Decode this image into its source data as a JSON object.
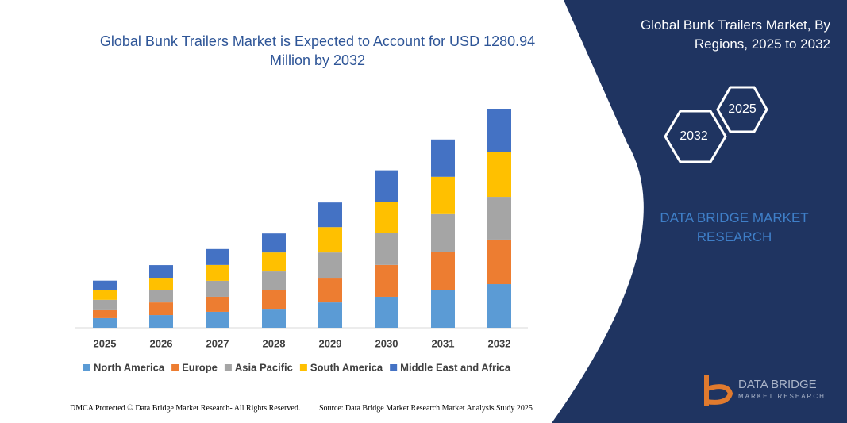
{
  "chart_data": {
    "type": "stacked-bar",
    "title": "Global Bunk Trailers Market is Expected to Account for USD 1280.94 Million by 2032",
    "categories": [
      "2025",
      "2026",
      "2027",
      "2028",
      "2029",
      "2030",
      "2031",
      "2032"
    ],
    "series": [
      {
        "name": "North America",
        "color": "#5b9bd5",
        "values": [
          56,
          74,
          93,
          111,
          148,
          181,
          218,
          255
        ]
      },
      {
        "name": "Europe",
        "color": "#ed7d31",
        "values": [
          51,
          74,
          88,
          107,
          144,
          186,
          223,
          260
        ]
      },
      {
        "name": "Asia Pacific",
        "color": "#a5a5a5",
        "values": [
          56,
          70,
          93,
          111,
          148,
          186,
          223,
          250
        ]
      },
      {
        "name": "South America",
        "color": "#ffc000",
        "values": [
          56,
          74,
          93,
          111,
          148,
          181,
          218,
          260
        ]
      },
      {
        "name": "Middle East and Africa",
        "color": "#4472c4",
        "values": [
          56,
          74,
          93,
          111,
          144,
          186,
          218,
          255
        ]
      }
    ]
  },
  "panel": {
    "title": "Global Bunk Trailers Market, By Regions, 2025 to 2032",
    "hexagons": [
      "2025",
      "2032"
    ],
    "brand": "DATA BRIDGE MARKET RESEARCH"
  },
  "logo": {
    "name": "DATA BRIDGE",
    "tagline": "MARKET RESEARCH"
  },
  "footer": {
    "left": "DMCA Protected © Data Bridge Market Research- All Rights Reserved.",
    "right": "Source: Data Bridge Market Research Market Analysis Study 2025"
  }
}
